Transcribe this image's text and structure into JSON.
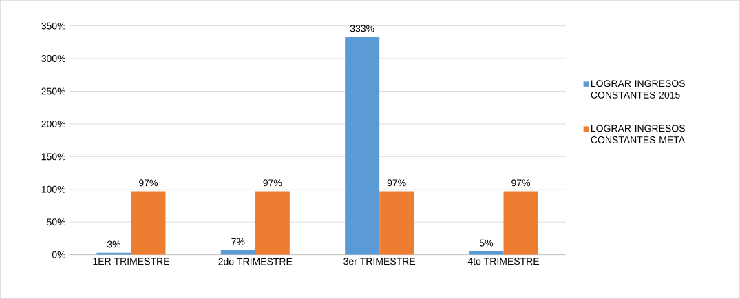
{
  "chart_data": {
    "type": "bar",
    "categories": [
      "1ER TRIMESTRE",
      "2do TRIMESTRE",
      "3er TRIMESTRE",
      "4to TRIMESTRE"
    ],
    "series": [
      {
        "name": "LOGRAR INGRESOS CONSTANTES 2015",
        "color": "#5b9bd5",
        "values": [
          3,
          7,
          333,
          5
        ],
        "value_labels": [
          "3%",
          "7%",
          "333%",
          "5%"
        ]
      },
      {
        "name": "LOGRAR INGRESOS CONSTANTES META",
        "color": "#ed7d31",
        "values": [
          97,
          97,
          97,
          97
        ],
        "value_labels": [
          "97%",
          "97%",
          "97%",
          "97%"
        ]
      }
    ],
    "ylim": [
      0,
      350
    ],
    "yticks": [
      {
        "value": 0,
        "label": "0%"
      },
      {
        "value": 50,
        "label": "50%"
      },
      {
        "value": 100,
        "label": "100%"
      },
      {
        "value": 150,
        "label": "150%"
      },
      {
        "value": 200,
        "label": "200%"
      },
      {
        "value": 250,
        "label": "250%"
      },
      {
        "value": 300,
        "label": "300%"
      },
      {
        "value": 350,
        "label": "350%"
      }
    ],
    "grid": "y",
    "legend": "right"
  }
}
